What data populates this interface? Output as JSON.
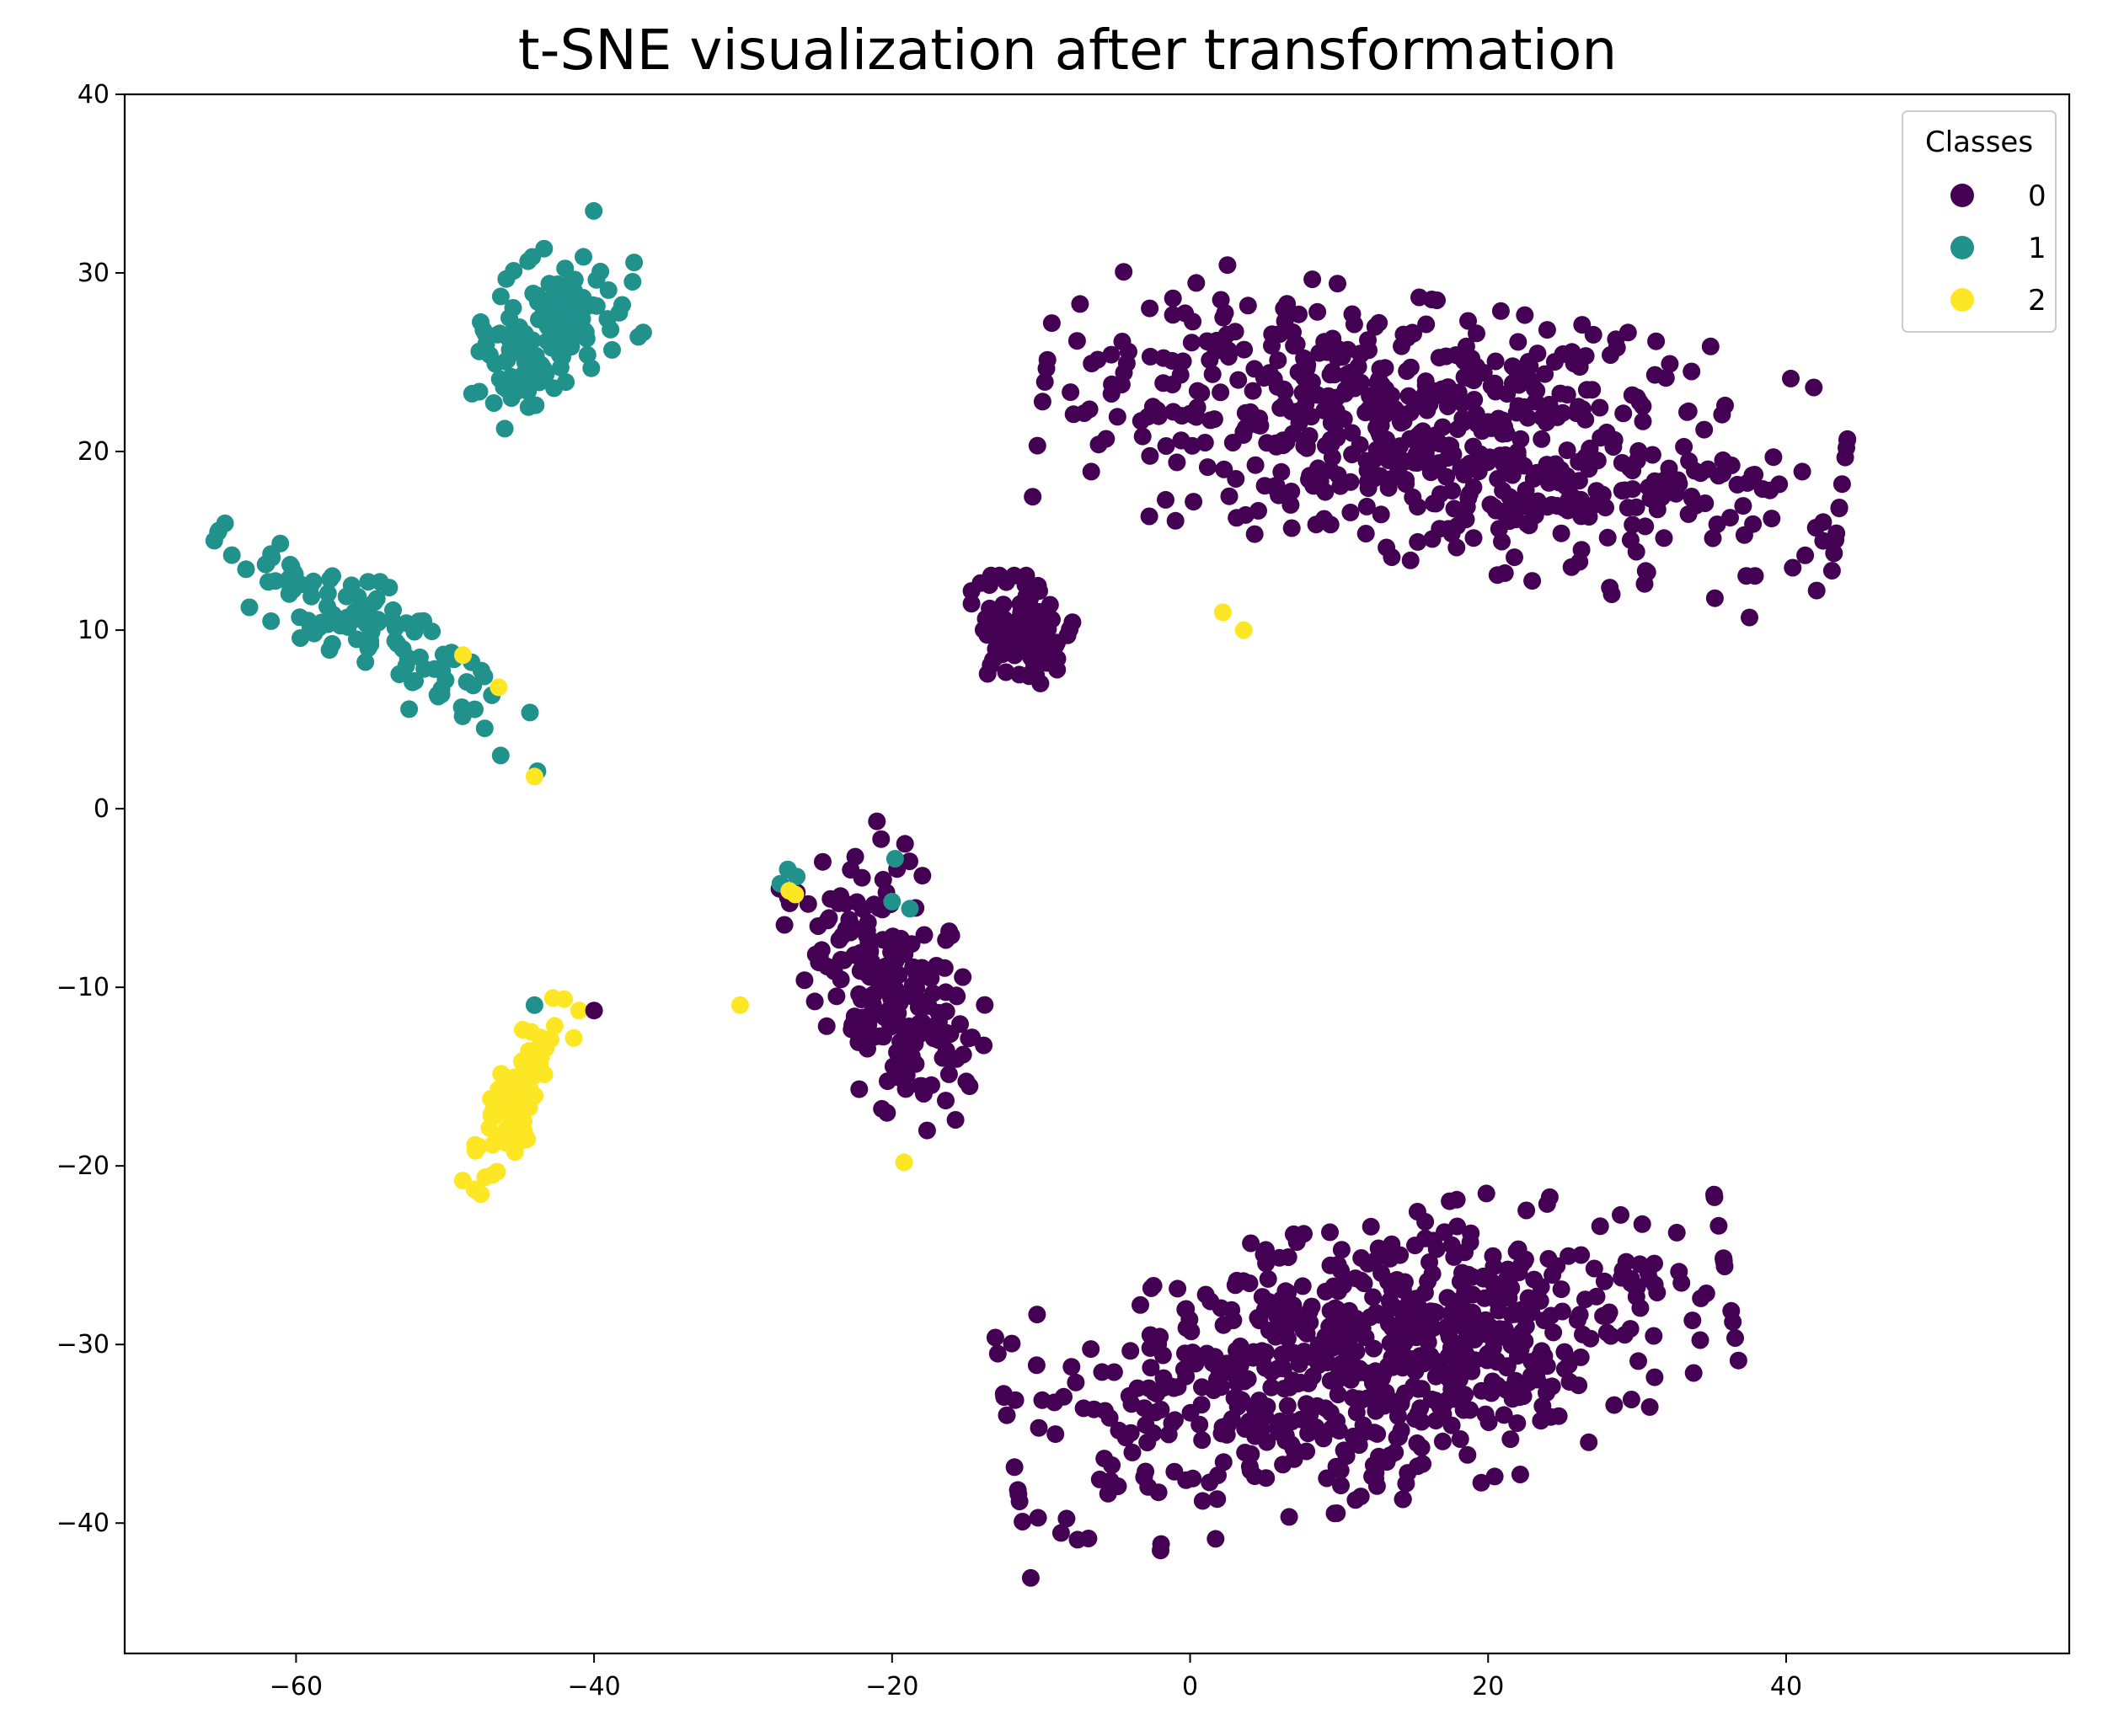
{
  "chart_data": {
    "type": "scatter",
    "title": "t-SNE visualization after transformation",
    "xlabel": "",
    "ylabel": "",
    "xlim": [
      -71.5,
      59
    ],
    "ylim": [
      -47.3,
      40
    ],
    "x_ticks": [
      -60,
      -40,
      -20,
      0,
      20,
      40
    ],
    "y_ticks": [
      -40,
      -30,
      -20,
      -10,
      0,
      10,
      20,
      30,
      40
    ],
    "grid": false,
    "legend": {
      "title": "Classes",
      "placement": "top-right",
      "entries": [
        "0",
        "1",
        "2"
      ]
    },
    "colors": {
      "0": "#440154",
      "1": "#21918c",
      "2": "#fde725"
    },
    "clusters": [
      {
        "class": "1",
        "count": 140,
        "center": [
          -43,
          27
        ],
        "spread": [
          3.2,
          5.5
        ],
        "angle": -58
      },
      {
        "class": "1",
        "count": 120,
        "center": [
          -55,
          10
        ],
        "spread": [
          9.5,
          2.2
        ],
        "angle": -28
      },
      {
        "class": "2",
        "count": 95,
        "center": [
          -45,
          -16
        ],
        "spread": [
          5,
          1.6
        ],
        "angle": 58
      },
      {
        "class": "0",
        "count": 120,
        "center": [
          -11,
          10
        ],
        "spread": [
          3,
          2.5
        ],
        "angle": 0
      },
      {
        "class": "0",
        "count": 640,
        "center": [
          17,
          21
        ],
        "spread": [
          22,
          6
        ],
        "angle": -8
      },
      {
        "class": "0",
        "count": 210,
        "center": [
          -20,
          -10
        ],
        "spread": [
          7,
          4
        ],
        "angle": -60
      },
      {
        "class": "0",
        "count": 700,
        "center": [
          12,
          -31
        ],
        "spread": [
          20,
          6.5
        ],
        "angle": 10
      }
    ],
    "points": [
      {
        "class": "0",
        "x": -40,
        "y": -11.3
      },
      {
        "class": "1",
        "x": -27.5,
        "y": -4.2
      },
      {
        "class": "1",
        "x": -27,
        "y": -3.4
      },
      {
        "class": "1",
        "x": -26.4,
        "y": -3.8
      },
      {
        "class": "1",
        "x": -20,
        "y": -5.2
      },
      {
        "class": "1",
        "x": -18.8,
        "y": -5.6
      },
      {
        "class": "1",
        "x": -19.8,
        "y": -2.8
      },
      {
        "class": "1",
        "x": -44,
        "y": -11
      },
      {
        "class": "1",
        "x": -43.8,
        "y": 2.1
      },
      {
        "class": "2",
        "x": -26.5,
        "y": -4.8
      },
      {
        "class": "2",
        "x": -26.9,
        "y": -4.6
      },
      {
        "class": "2",
        "x": -30.2,
        "y": -11
      },
      {
        "class": "2",
        "x": -19.2,
        "y": -19.8
      },
      {
        "class": "2",
        "x": 2.2,
        "y": 11
      },
      {
        "class": "2",
        "x": 3.6,
        "y": 10
      },
      {
        "class": "2",
        "x": -46.4,
        "y": 6.8
      },
      {
        "class": "2",
        "x": -44,
        "y": 1.8
      },
      {
        "class": "2",
        "x": -48.8,
        "y": 8.6
      }
    ]
  }
}
